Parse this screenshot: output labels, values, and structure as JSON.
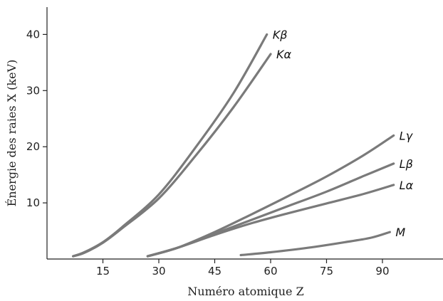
{
  "chart_data": {
    "type": "line",
    "title": "",
    "xlabel": "Numéro atomique Z",
    "ylabel": "Énergie des raies X (keV)",
    "xlim": [
      0,
      100
    ],
    "ylim": [
      0,
      45
    ],
    "x_ticks": [
      15,
      30,
      45,
      60,
      75,
      90
    ],
    "y_ticks": [
      10,
      20,
      30,
      40
    ],
    "grid": false,
    "legend": "inline labels at line ends",
    "line_color": "#7a7a7a",
    "series": [
      {
        "name": "Kβ",
        "points": [
          [
            7,
            0.5
          ],
          [
            10,
            1.2
          ],
          [
            15,
            3.0
          ],
          [
            20,
            5.6
          ],
          [
            30,
            11.5
          ],
          [
            40,
            20.0
          ],
          [
            50,
            29.5
          ],
          [
            59,
            40.0
          ]
        ]
      },
      {
        "name": "Kα",
        "points": [
          [
            7,
            0.5
          ],
          [
            10,
            1.1
          ],
          [
            15,
            2.9
          ],
          [
            20,
            5.4
          ],
          [
            30,
            10.8
          ],
          [
            40,
            18.5
          ],
          [
            50,
            27.0
          ],
          [
            60,
            36.5
          ]
        ]
      },
      {
        "name": "Lγ",
        "points": [
          [
            27,
            0.5
          ],
          [
            35,
            2.0
          ],
          [
            45,
            4.8
          ],
          [
            55,
            8.0
          ],
          [
            65,
            11.3
          ],
          [
            75,
            14.7
          ],
          [
            85,
            18.5
          ],
          [
            93,
            22.0
          ]
        ]
      },
      {
        "name": "Lβ",
        "points": [
          [
            27,
            0.5
          ],
          [
            35,
            2.0
          ],
          [
            45,
            4.5
          ],
          [
            55,
            7.0
          ],
          [
            65,
            9.5
          ],
          [
            75,
            12.0
          ],
          [
            85,
            14.8
          ],
          [
            93,
            17.0
          ]
        ]
      },
      {
        "name": "Lα",
        "points": [
          [
            27,
            0.5
          ],
          [
            35,
            2.0
          ],
          [
            45,
            4.3
          ],
          [
            55,
            6.4
          ],
          [
            65,
            8.2
          ],
          [
            75,
            9.9
          ],
          [
            85,
            11.6
          ],
          [
            93,
            13.2
          ]
        ]
      },
      {
        "name": "M",
        "points": [
          [
            52,
            0.7
          ],
          [
            60,
            1.2
          ],
          [
            70,
            2.0
          ],
          [
            80,
            3.0
          ],
          [
            87,
            3.8
          ],
          [
            92,
            4.8
          ]
        ]
      }
    ]
  }
}
